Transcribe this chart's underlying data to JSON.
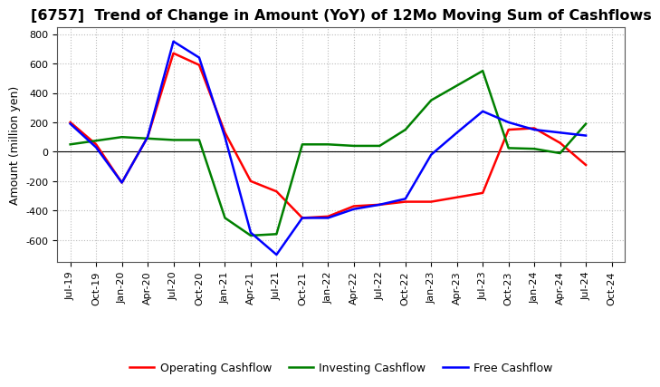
{
  "title": "[6757]  Trend of Change in Amount (YoY) of 12Mo Moving Sum of Cashflows",
  "ylabel": "Amount (million yen)",
  "x_labels": [
    "Jul-19",
    "Oct-19",
    "Jan-20",
    "Apr-20",
    "Jul-20",
    "Oct-20",
    "Jan-21",
    "Apr-21",
    "Jul-21",
    "Oct-21",
    "Jan-22",
    "Apr-22",
    "Jul-22",
    "Oct-22",
    "Jan-23",
    "Apr-23",
    "Jul-23",
    "Oct-23",
    "Jan-24",
    "Apr-24",
    "Jul-24",
    "Oct-24"
  ],
  "operating_cashflow": [
    200,
    50,
    -210,
    100,
    670,
    590,
    130,
    -200,
    -270,
    -450,
    -440,
    -370,
    -360,
    -340,
    -340,
    -310,
    -280,
    150,
    160,
    60,
    -90,
    null
  ],
  "investing_cashflow": [
    50,
    75,
    100,
    90,
    80,
    80,
    -450,
    -570,
    -560,
    50,
    50,
    40,
    40,
    150,
    350,
    450,
    550,
    25,
    20,
    -10,
    190,
    null
  ],
  "free_cashflow": [
    190,
    30,
    -210,
    100,
    750,
    640,
    100,
    -550,
    -700,
    -450,
    -450,
    -390,
    -360,
    -320,
    -20,
    130,
    275,
    200,
    150,
    130,
    110,
    null
  ],
  "operating_color": "#ff0000",
  "investing_color": "#008000",
  "free_color": "#0000ff",
  "ylim": [
    -750,
    850
  ],
  "yticks": [
    -600,
    -400,
    -200,
    0,
    200,
    400,
    600,
    800
  ],
  "background_color": "#ffffff",
  "grid_color": "#bbbbbb",
  "title_fontsize": 11.5,
  "axis_fontsize": 9,
  "tick_fontsize": 8,
  "legend_fontsize": 9,
  "linewidth": 1.8
}
